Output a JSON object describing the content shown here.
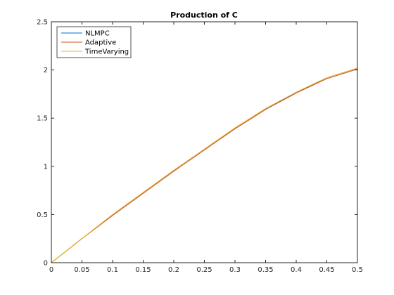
{
  "chart_data": {
    "type": "line",
    "title": "Production of C",
    "xlabel": "",
    "ylabel": "",
    "xlim": [
      0,
      0.5
    ],
    "ylim": [
      0,
      2.5
    ],
    "grid": false,
    "legend_position": "top-left",
    "xticks": [
      0,
      0.05,
      0.1,
      0.15,
      0.2,
      0.25,
      0.3,
      0.35,
      0.4,
      0.45,
      0.5
    ],
    "xtick_labels": [
      "0",
      "0.05",
      "0.1",
      "0.15",
      "0.2",
      "0.25",
      "0.3",
      "0.35",
      "0.4",
      "0.45",
      "0.5"
    ],
    "yticks": [
      0,
      0.5,
      1,
      1.5,
      2,
      2.5
    ],
    "ytick_labels": [
      "0",
      "0.5",
      "1",
      "1.5",
      "2",
      "2.5"
    ],
    "x": [
      0,
      0.05,
      0.1,
      0.15,
      0.2,
      0.25,
      0.3,
      0.35,
      0.4,
      0.45,
      0.5
    ],
    "series": [
      {
        "name": "NLMPC",
        "color": "#0072bd",
        "values": [
          0,
          0.25,
          0.49,
          0.72,
          0.95,
          1.17,
          1.39,
          1.59,
          1.77,
          1.91,
          2.01
        ]
      },
      {
        "name": "Adaptive",
        "color": "#d95319",
        "values": [
          0,
          0.25,
          0.49,
          0.72,
          0.95,
          1.17,
          1.39,
          1.59,
          1.76,
          1.91,
          2.01
        ]
      },
      {
        "name": "TimeVarying",
        "color": "#edb120",
        "values": [
          0,
          0.25,
          0.5,
          0.73,
          0.96,
          1.18,
          1.4,
          1.6,
          1.77,
          1.92,
          2.02
        ]
      }
    ]
  }
}
